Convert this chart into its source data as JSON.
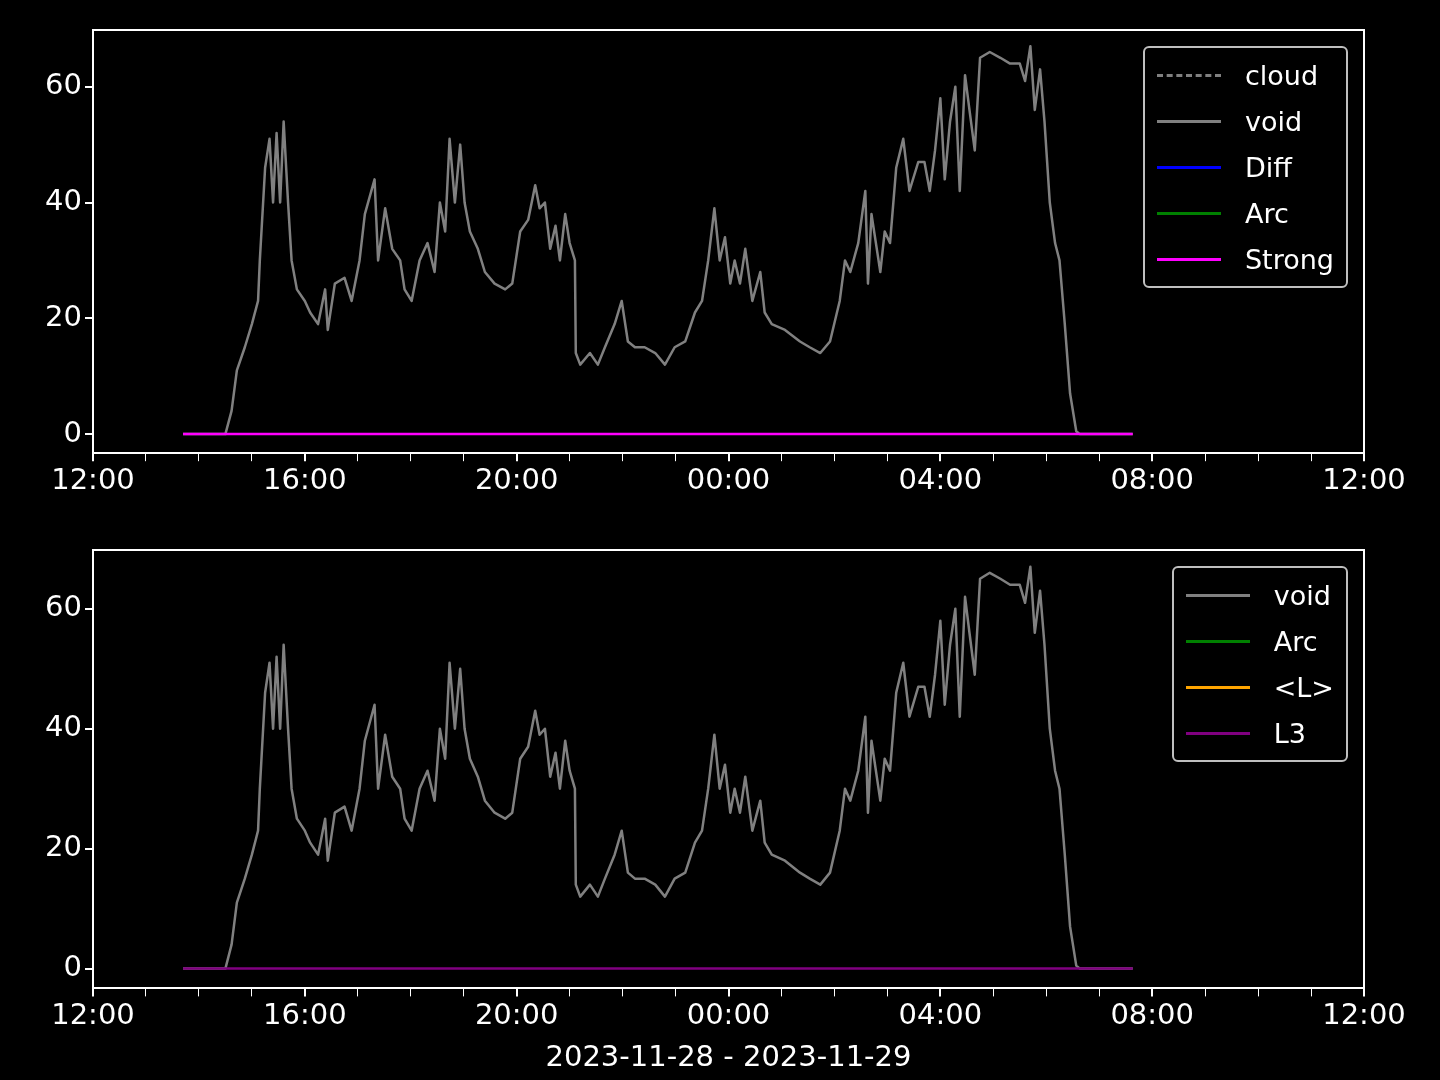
{
  "chart_data": [
    {
      "type": "line",
      "xlim": [
        "2023-11-28T12:00",
        "2023-11-29T12:00"
      ],
      "xticks": [
        {
          "value": "2023-11-28T12:00",
          "label": "12:00"
        },
        {
          "value": "2023-11-28T13:00",
          "label": null
        },
        {
          "value": "2023-11-28T14:00",
          "label": null
        },
        {
          "value": "2023-11-28T15:00",
          "label": null
        },
        {
          "value": "2023-11-28T16:00",
          "label": "16:00"
        },
        {
          "value": "2023-11-28T17:00",
          "label": null
        },
        {
          "value": "2023-11-28T18:00",
          "label": null
        },
        {
          "value": "2023-11-28T19:00",
          "label": null
        },
        {
          "value": "2023-11-28T20:00",
          "label": "20:00"
        },
        {
          "value": "2023-11-28T21:00",
          "label": null
        },
        {
          "value": "2023-11-28T22:00",
          "label": null
        },
        {
          "value": "2023-11-28T23:00",
          "label": null
        },
        {
          "value": "2023-11-29T00:00",
          "label": "00:00"
        },
        {
          "value": "2023-11-29T01:00",
          "label": null
        },
        {
          "value": "2023-11-29T02:00",
          "label": null
        },
        {
          "value": "2023-11-29T03:00",
          "label": null
        },
        {
          "value": "2023-11-29T04:00",
          "label": "04:00"
        },
        {
          "value": "2023-11-29T05:00",
          "label": null
        },
        {
          "value": "2023-11-29T06:00",
          "label": null
        },
        {
          "value": "2023-11-29T07:00",
          "label": null
        },
        {
          "value": "2023-11-29T08:00",
          "label": "08:00"
        },
        {
          "value": "2023-11-29T09:00",
          "label": null
        },
        {
          "value": "2023-11-29T10:00",
          "label": null
        },
        {
          "value": "2023-11-29T11:00",
          "label": null
        },
        {
          "value": "2023-11-29T12:00",
          "label": "12:00"
        }
      ],
      "ylim": [
        -3.3,
        69.8
      ],
      "yticks": [
        0,
        20,
        40,
        60
      ],
      "grid": false,
      "legend": "top right",
      "marker": "none",
      "series": [
        {
          "name": "cloud",
          "color": "#808080",
          "line_style": "dashed"
        },
        {
          "name": "void",
          "color": "#808080",
          "line_style": "solid",
          "x": [
            "2023-11-28T13:42",
            "2023-11-28T14:30",
            "2023-11-28T14:37",
            "2023-11-28T14:43",
            "2023-11-28T14:52",
            "2023-11-28T15:00",
            "2023-11-28T15:07",
            "2023-11-28T15:09",
            "2023-11-28T15:15",
            "2023-11-28T15:20",
            "2023-11-28T15:24",
            "2023-11-28T15:28",
            "2023-11-28T15:32",
            "2023-11-28T15:36",
            "2023-11-28T15:41",
            "2023-11-28T15:45",
            "2023-11-28T15:51",
            "2023-11-28T16:00",
            "2023-11-28T16:06",
            "2023-11-28T16:15",
            "2023-11-28T16:23",
            "2023-11-28T16:26",
            "2023-11-28T16:34",
            "2023-11-28T16:45",
            "2023-11-28T16:53",
            "2023-11-28T17:02",
            "2023-11-28T17:08",
            "2023-11-28T17:19",
            "2023-11-28T17:23",
            "2023-11-28T17:31",
            "2023-11-28T17:39",
            "2023-11-28T17:48",
            "2023-11-28T17:53",
            "2023-11-28T18:01",
            "2023-11-28T18:10",
            "2023-11-28T18:19",
            "2023-11-28T18:27",
            "2023-11-28T18:33",
            "2023-11-28T18:39",
            "2023-11-28T18:44",
            "2023-11-28T18:50",
            "2023-11-28T18:56",
            "2023-11-28T19:01",
            "2023-11-28T19:07",
            "2023-11-28T19:16",
            "2023-11-28T19:24",
            "2023-11-28T19:35",
            "2023-11-28T19:47",
            "2023-11-28T19:55",
            "2023-11-28T20:04",
            "2023-11-28T20:13",
            "2023-11-28T20:21",
            "2023-11-28T20:26",
            "2023-11-28T20:32",
            "2023-11-28T20:38",
            "2023-11-28T20:44",
            "2023-11-28T20:49",
            "2023-11-28T20:55",
            "2023-11-28T21:00",
            "2023-11-28T21:06",
            "2023-11-28T21:07",
            "2023-11-28T21:12",
            "2023-11-28T21:23",
            "2023-11-28T21:32",
            "2023-11-28T21:40",
            "2023-11-28T21:51",
            "2023-11-28T21:59",
            "2023-11-28T22:06",
            "2023-11-28T22:14",
            "2023-11-28T22:25",
            "2023-11-28T22:37",
            "2023-11-28T22:48",
            "2023-11-28T22:59",
            "2023-11-28T23:11",
            "2023-11-28T23:22",
            "2023-11-28T23:30",
            "2023-11-28T23:37",
            "2023-11-28T23:44",
            "2023-11-28T23:50",
            "2023-11-28T23:56",
            "2023-11-29T00:02",
            "2023-11-29T00:07",
            "2023-11-29T00:13",
            "2023-11-29T00:19",
            "2023-11-29T00:27",
            "2023-11-29T00:36",
            "2023-11-29T00:41",
            "2023-11-29T00:49",
            "2023-11-29T01:04",
            "2023-11-29T01:21",
            "2023-11-29T01:32",
            "2023-11-29T01:44",
            "2023-11-29T01:55",
            "2023-11-29T02:06",
            "2023-11-29T02:12",
            "2023-11-29T02:18",
            "2023-11-29T02:27",
            "2023-11-29T02:35",
            "2023-11-29T02:38",
            "2023-11-29T02:42",
            "2023-11-29T02:52",
            "2023-11-29T02:57",
            "2023-11-29T03:03",
            "2023-11-29T03:10",
            "2023-11-29T03:18",
            "2023-11-29T03:25",
            "2023-11-29T03:35",
            "2023-11-29T03:42",
            "2023-11-29T03:48",
            "2023-11-29T03:54",
            "2023-11-29T04:00",
            "2023-11-29T04:05",
            "2023-11-29T04:11",
            "2023-11-29T04:17",
            "2023-11-29T04:22",
            "2023-11-29T04:28",
            "2023-11-29T04:33",
            "2023-11-29T04:39",
            "2023-11-29T04:45",
            "2023-11-29T04:56",
            "2023-11-29T05:08",
            "2023-11-29T05:19",
            "2023-11-29T05:30",
            "2023-11-29T05:36",
            "2023-11-29T05:42",
            "2023-11-29T05:47",
            "2023-11-29T05:53",
            "2023-11-29T05:58",
            "2023-11-29T06:04",
            "2023-11-29T06:10",
            "2023-11-29T06:15",
            "2023-11-29T06:21",
            "2023-11-29T06:27",
            "2023-11-29T06:34",
            "2023-11-29T06:38",
            "2023-11-29T07:38"
          ],
          "values": [
            0,
            0,
            4,
            11,
            15,
            19,
            23,
            30,
            46,
            51,
            40,
            52,
            40,
            54,
            40,
            30,
            25,
            23,
            21,
            19,
            25,
            18,
            26,
            27,
            23,
            30,
            38,
            44,
            30,
            39,
            32,
            30,
            25,
            23,
            30,
            33,
            28,
            40,
            35,
            51,
            40,
            50,
            40,
            35,
            32,
            28,
            26,
            25,
            26,
            35,
            37,
            43,
            39,
            40,
            32,
            36,
            30,
            38,
            33,
            30,
            14,
            12,
            14,
            12,
            15,
            19,
            23,
            16,
            15,
            15,
            14,
            12,
            15,
            16,
            21,
            23,
            30,
            39,
            30,
            34,
            26,
            30,
            26,
            32,
            23,
            28,
            21,
            19,
            18,
            16,
            15,
            14,
            16,
            23,
            30,
            28,
            33,
            42,
            26,
            38,
            28,
            35,
            33,
            46,
            51,
            42,
            47,
            47,
            42,
            49,
            58,
            44,
            54,
            60,
            42,
            62,
            56,
            49,
            65,
            66,
            65,
            64,
            64,
            61,
            67,
            56,
            63,
            54,
            40,
            33,
            30,
            19,
            7,
            0.5,
            0,
            0
          ]
        },
        {
          "name": "Diff",
          "color": "#0000ff",
          "line_style": "solid"
        },
        {
          "name": "Arc",
          "color": "#008000",
          "line_style": "solid"
        },
        {
          "name": "Strong",
          "color": "#ff00ff",
          "line_style": "solid",
          "x": [
            "2023-11-28T13:42",
            "2023-11-29T07:38"
          ],
          "values": [
            0,
            0
          ]
        }
      ]
    },
    {
      "type": "line",
      "xlabel": "2023-11-28 - 2023-11-29",
      "xlim": [
        "2023-11-28T12:00",
        "2023-11-29T12:00"
      ],
      "xticks": [
        {
          "value": "2023-11-28T12:00",
          "label": "12:00"
        },
        {
          "value": "2023-11-28T13:00",
          "label": null
        },
        {
          "value": "2023-11-28T14:00",
          "label": null
        },
        {
          "value": "2023-11-28T15:00",
          "label": null
        },
        {
          "value": "2023-11-28T16:00",
          "label": "16:00"
        },
        {
          "value": "2023-11-28T17:00",
          "label": null
        },
        {
          "value": "2023-11-28T18:00",
          "label": null
        },
        {
          "value": "2023-11-28T19:00",
          "label": null
        },
        {
          "value": "2023-11-28T20:00",
          "label": "20:00"
        },
        {
          "value": "2023-11-28T21:00",
          "label": null
        },
        {
          "value": "2023-11-28T22:00",
          "label": null
        },
        {
          "value": "2023-11-28T23:00",
          "label": null
        },
        {
          "value": "2023-11-29T00:00",
          "label": "00:00"
        },
        {
          "value": "2023-11-29T01:00",
          "label": null
        },
        {
          "value": "2023-11-29T02:00",
          "label": null
        },
        {
          "value": "2023-11-29T03:00",
          "label": null
        },
        {
          "value": "2023-11-29T04:00",
          "label": "04:00"
        },
        {
          "value": "2023-11-29T05:00",
          "label": null
        },
        {
          "value": "2023-11-29T06:00",
          "label": null
        },
        {
          "value": "2023-11-29T07:00",
          "label": null
        },
        {
          "value": "2023-11-29T08:00",
          "label": "08:00"
        },
        {
          "value": "2023-11-29T09:00",
          "label": null
        },
        {
          "value": "2023-11-29T10:00",
          "label": null
        },
        {
          "value": "2023-11-29T11:00",
          "label": null
        },
        {
          "value": "2023-11-29T12:00",
          "label": "12:00"
        }
      ],
      "ylim": [
        -3.3,
        69.8
      ],
      "yticks": [
        0,
        20,
        40,
        60
      ],
      "grid": false,
      "legend": "top right",
      "marker": "none",
      "series": [
        {
          "name": "void",
          "color": "#808080",
          "line_style": "solid",
          "x": [
            "2023-11-28T13:42",
            "2023-11-28T14:30",
            "2023-11-28T14:37",
            "2023-11-28T14:43",
            "2023-11-28T14:52",
            "2023-11-28T15:00",
            "2023-11-28T15:07",
            "2023-11-28T15:09",
            "2023-11-28T15:15",
            "2023-11-28T15:20",
            "2023-11-28T15:24",
            "2023-11-28T15:28",
            "2023-11-28T15:32",
            "2023-11-28T15:36",
            "2023-11-28T15:41",
            "2023-11-28T15:45",
            "2023-11-28T15:51",
            "2023-11-28T16:00",
            "2023-11-28T16:06",
            "2023-11-28T16:15",
            "2023-11-28T16:23",
            "2023-11-28T16:26",
            "2023-11-28T16:34",
            "2023-11-28T16:45",
            "2023-11-28T16:53",
            "2023-11-28T17:02",
            "2023-11-28T17:08",
            "2023-11-28T17:19",
            "2023-11-28T17:23",
            "2023-11-28T17:31",
            "2023-11-28T17:39",
            "2023-11-28T17:48",
            "2023-11-28T17:53",
            "2023-11-28T18:01",
            "2023-11-28T18:10",
            "2023-11-28T18:19",
            "2023-11-28T18:27",
            "2023-11-28T18:33",
            "2023-11-28T18:39",
            "2023-11-28T18:44",
            "2023-11-28T18:50",
            "2023-11-28T18:56",
            "2023-11-28T19:01",
            "2023-11-28T19:07",
            "2023-11-28T19:16",
            "2023-11-28T19:24",
            "2023-11-28T19:35",
            "2023-11-28T19:47",
            "2023-11-28T19:55",
            "2023-11-28T20:04",
            "2023-11-28T20:13",
            "2023-11-28T20:21",
            "2023-11-28T20:26",
            "2023-11-28T20:32",
            "2023-11-28T20:38",
            "2023-11-28T20:44",
            "2023-11-28T20:49",
            "2023-11-28T20:55",
            "2023-11-28T21:00",
            "2023-11-28T21:06",
            "2023-11-28T21:07",
            "2023-11-28T21:12",
            "2023-11-28T21:23",
            "2023-11-28T21:32",
            "2023-11-28T21:40",
            "2023-11-28T21:51",
            "2023-11-28T21:59",
            "2023-11-28T22:06",
            "2023-11-28T22:14",
            "2023-11-28T22:25",
            "2023-11-28T22:37",
            "2023-11-28T22:48",
            "2023-11-28T22:59",
            "2023-11-28T23:11",
            "2023-11-28T23:22",
            "2023-11-28T23:30",
            "2023-11-28T23:37",
            "2023-11-28T23:44",
            "2023-11-28T23:50",
            "2023-11-28T23:56",
            "2023-11-29T00:02",
            "2023-11-29T00:07",
            "2023-11-29T00:13",
            "2023-11-29T00:19",
            "2023-11-29T00:27",
            "2023-11-29T00:36",
            "2023-11-29T00:41",
            "2023-11-29T00:49",
            "2023-11-29T01:04",
            "2023-11-29T01:21",
            "2023-11-29T01:32",
            "2023-11-29T01:44",
            "2023-11-29T01:55",
            "2023-11-29T02:06",
            "2023-11-29T02:12",
            "2023-11-29T02:18",
            "2023-11-29T02:27",
            "2023-11-29T02:35",
            "2023-11-29T02:38",
            "2023-11-29T02:42",
            "2023-11-29T02:52",
            "2023-11-29T02:57",
            "2023-11-29T03:03",
            "2023-11-29T03:10",
            "2023-11-29T03:18",
            "2023-11-29T03:25",
            "2023-11-29T03:35",
            "2023-11-29T03:42",
            "2023-11-29T03:48",
            "2023-11-29T03:54",
            "2023-11-29T04:00",
            "2023-11-29T04:05",
            "2023-11-29T04:11",
            "2023-11-29T04:17",
            "2023-11-29T04:22",
            "2023-11-29T04:28",
            "2023-11-29T04:33",
            "2023-11-29T04:39",
            "2023-11-29T04:45",
            "2023-11-29T04:56",
            "2023-11-29T05:08",
            "2023-11-29T05:19",
            "2023-11-29T05:30",
            "2023-11-29T05:36",
            "2023-11-29T05:42",
            "2023-11-29T05:47",
            "2023-11-29T05:53",
            "2023-11-29T05:58",
            "2023-11-29T06:04",
            "2023-11-29T06:10",
            "2023-11-29T06:15",
            "2023-11-29T06:21",
            "2023-11-29T06:27",
            "2023-11-29T06:34",
            "2023-11-29T06:38",
            "2023-11-29T07:38"
          ],
          "values": [
            0,
            0,
            4,
            11,
            15,
            19,
            23,
            30,
            46,
            51,
            40,
            52,
            40,
            54,
            40,
            30,
            25,
            23,
            21,
            19,
            25,
            18,
            26,
            27,
            23,
            30,
            38,
            44,
            30,
            39,
            32,
            30,
            25,
            23,
            30,
            33,
            28,
            40,
            35,
            51,
            40,
            50,
            40,
            35,
            32,
            28,
            26,
            25,
            26,
            35,
            37,
            43,
            39,
            40,
            32,
            36,
            30,
            38,
            33,
            30,
            14,
            12,
            14,
            12,
            15,
            19,
            23,
            16,
            15,
            15,
            14,
            12,
            15,
            16,
            21,
            23,
            30,
            39,
            30,
            34,
            26,
            30,
            26,
            32,
            23,
            28,
            21,
            19,
            18,
            16,
            15,
            14,
            16,
            23,
            30,
            28,
            33,
            42,
            26,
            38,
            28,
            35,
            33,
            46,
            51,
            42,
            47,
            47,
            42,
            49,
            58,
            44,
            54,
            60,
            42,
            62,
            56,
            49,
            65,
            66,
            65,
            64,
            64,
            61,
            67,
            56,
            63,
            54,
            40,
            33,
            30,
            19,
            7,
            0.5,
            0,
            0
          ]
        },
        {
          "name": "Arc",
          "color": "#008000",
          "line_style": "solid"
        },
        {
          "name": "<L>",
          "color": "#ffa500",
          "line_style": "solid"
        },
        {
          "name": "L3",
          "color": "#800080",
          "line_style": "solid",
          "x": [
            "2023-11-28T13:42",
            "2023-11-29T07:38"
          ],
          "values": [
            0,
            0
          ]
        }
      ]
    }
  ]
}
